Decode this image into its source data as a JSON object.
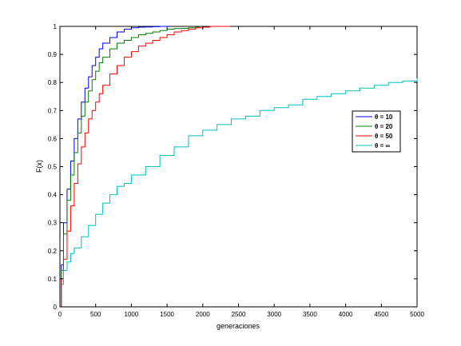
{
  "chart_data": {
    "type": "line",
    "step": true,
    "xlabel": "generaciones",
    "ylabel": "F(x)",
    "xlim": [
      0,
      5000
    ],
    "ylim": [
      0,
      1
    ],
    "xticks": [
      0,
      500,
      1000,
      1500,
      2000,
      2500,
      3000,
      3500,
      4000,
      4500,
      5000
    ],
    "xtick_labels": [
      "0",
      "500",
      "1000",
      "1500",
      "2000",
      "2500",
      "3000",
      "3500",
      "4000",
      "4500",
      "5000"
    ],
    "yticks": [
      0,
      0.1,
      0.2,
      0.3,
      0.4,
      0.5,
      0.6,
      0.7,
      0.8,
      0.9,
      1
    ],
    "ytick_labels": [
      "0",
      "0.1",
      "0.2",
      "0.3",
      "0.4",
      "0.5",
      "0.6",
      "0.7",
      "0.8",
      "0.9",
      "1"
    ],
    "grid": false,
    "legend": {
      "position": "center-right"
    },
    "series": [
      {
        "name": "θ = 10",
        "color": "#0000ff",
        "x": [
          0,
          20,
          50,
          100,
          150,
          200,
          250,
          300,
          350,
          400,
          450,
          500,
          550,
          600,
          700,
          800,
          900,
          1000,
          1100,
          1200,
          1300,
          1400,
          1520
        ],
        "y": [
          0,
          0.15,
          0.3,
          0.42,
          0.52,
          0.6,
          0.67,
          0.73,
          0.78,
          0.82,
          0.86,
          0.89,
          0.92,
          0.94,
          0.96,
          0.98,
          0.99,
          0.995,
          0.997,
          0.998,
          0.999,
          1.0,
          1.0
        ]
      },
      {
        "name": "θ = 20",
        "color": "#008000",
        "x": [
          0,
          20,
          50,
          100,
          150,
          200,
          250,
          300,
          350,
          400,
          450,
          500,
          550,
          600,
          700,
          800,
          900,
          1000,
          1100,
          1200,
          1300,
          1400,
          1500,
          1600,
          1700,
          1800,
          1900,
          1950
        ],
        "y": [
          0,
          0.13,
          0.26,
          0.38,
          0.47,
          0.55,
          0.62,
          0.68,
          0.73,
          0.77,
          0.81,
          0.84,
          0.87,
          0.89,
          0.92,
          0.94,
          0.95,
          0.96,
          0.97,
          0.975,
          0.98,
          0.985,
          0.99,
          0.992,
          0.993,
          0.995,
          0.998,
          1.0
        ]
      },
      {
        "name": "θ = 50",
        "color": "#ff0000",
        "x": [
          0,
          20,
          50,
          100,
          150,
          200,
          250,
          300,
          350,
          400,
          450,
          500,
          550,
          600,
          700,
          800,
          900,
          1000,
          1100,
          1200,
          1300,
          1400,
          1500,
          1600,
          1700,
          1800,
          1900,
          2000,
          2100,
          2200,
          2380
        ],
        "y": [
          0,
          0.1,
          0.17,
          0.27,
          0.36,
          0.44,
          0.51,
          0.57,
          0.62,
          0.67,
          0.7,
          0.73,
          0.76,
          0.79,
          0.83,
          0.86,
          0.89,
          0.91,
          0.93,
          0.94,
          0.95,
          0.96,
          0.97,
          0.98,
          0.985,
          0.99,
          0.995,
          0.997,
          1.0,
          1.0,
          1.0
        ]
      },
      {
        "name": "θ = ∞",
        "color": "#00bfbf",
        "x": [
          0,
          25,
          50,
          100,
          150,
          200,
          300,
          400,
          500,
          600,
          700,
          800,
          900,
          1000,
          1200,
          1400,
          1600,
          1800,
          2000,
          2200,
          2400,
          2600,
          2800,
          3000,
          3200,
          3400,
          3600,
          3800,
          4000,
          4200,
          4400,
          4600,
          4800,
          5000
        ],
        "y": [
          0,
          0.08,
          0.13,
          0.16,
          0.19,
          0.21,
          0.25,
          0.29,
          0.33,
          0.37,
          0.4,
          0.43,
          0.44,
          0.47,
          0.5,
          0.54,
          0.57,
          0.61,
          0.63,
          0.65,
          0.67,
          0.68,
          0.7,
          0.71,
          0.72,
          0.74,
          0.75,
          0.76,
          0.77,
          0.78,
          0.79,
          0.8,
          0.805,
          0.815
        ]
      }
    ]
  }
}
